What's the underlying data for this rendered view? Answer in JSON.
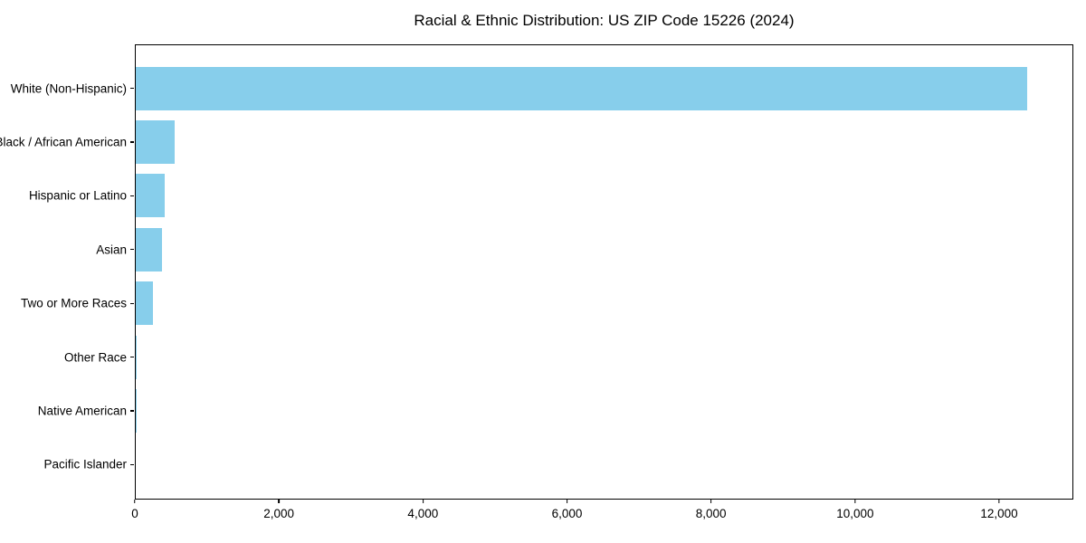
{
  "chart_data": {
    "type": "bar",
    "orientation": "horizontal",
    "title": "Racial & Ethnic Distribution: US ZIP Code 15226 (2024)",
    "categories": [
      "White (Non-Hispanic)",
      "Black / African American",
      "Hispanic or Latino",
      "Asian",
      "Two or More Races",
      "Other Race",
      "Native American",
      "Pacific Islander"
    ],
    "values": [
      12400,
      540,
      400,
      370,
      235,
      15,
      5,
      0
    ],
    "xlabel": "",
    "ylabel": "",
    "xlim": [
      0,
      13030
    ],
    "xticks": [
      0,
      2000,
      4000,
      6000,
      8000,
      10000,
      12000
    ],
    "xtick_labels": [
      "0",
      "2,000",
      "4,000",
      "6,000",
      "8,000",
      "10,000",
      "12,000"
    ],
    "bar_color": "#87CEEB",
    "grid": false,
    "legend_position": "none"
  }
}
